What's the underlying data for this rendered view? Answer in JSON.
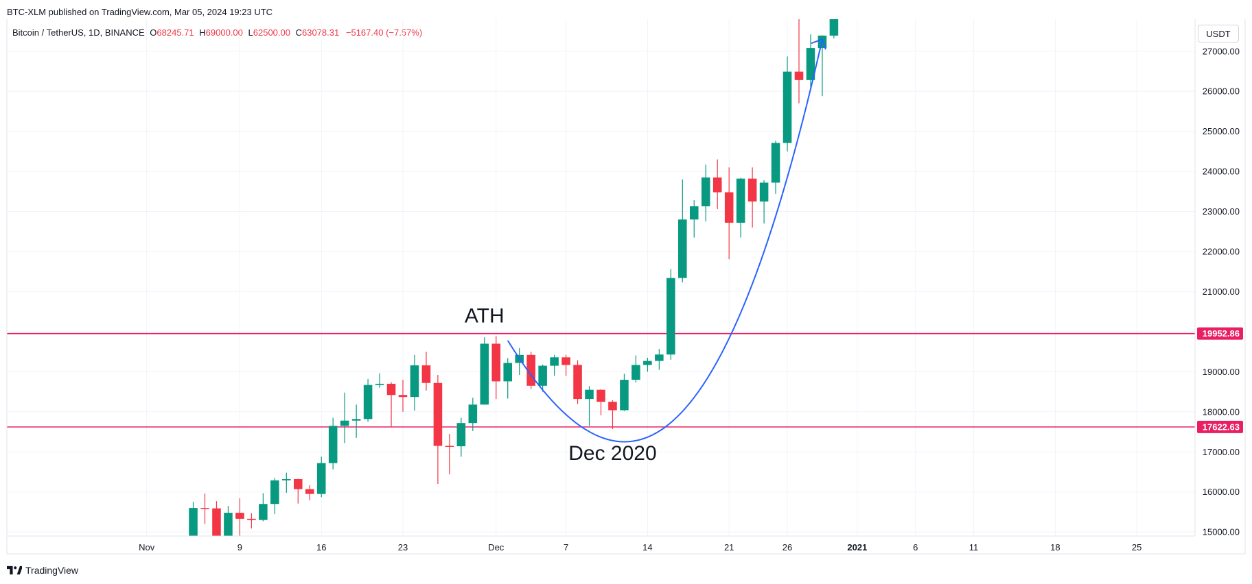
{
  "header": {
    "publish_text": "BTC-XLM published on TradingView.com, Mar 05, 2024 19:23 UTC"
  },
  "legend": {
    "symbol": "Bitcoin / TetherUS, 1D, BINANCE",
    "o_label": "O",
    "o_value": "68245.71",
    "h_label": "H",
    "h_value": "69000.00",
    "l_label": "L",
    "l_value": "62500.00",
    "c_label": "C",
    "c_value": "63078.31",
    "change": "−5167.40 (−7.57%)"
  },
  "currency": "USDT",
  "footer": {
    "brand": "TradingView"
  },
  "colors": {
    "up": "#089981",
    "down": "#f23645",
    "level": "#e91e63",
    "curve": "#2962ff",
    "grid": "#f0f3fa"
  },
  "chart_data": {
    "type": "candlestick",
    "y_range": [
      14900,
      27800
    ],
    "y_ticks": [
      "15000.00",
      "16000.00",
      "17000.00",
      "18000.00",
      "19000.00",
      "20000.00",
      "21000.00",
      "22000.00",
      "23000.00",
      "24000.00",
      "25000.00",
      "26000.00",
      "27000.00"
    ],
    "x_range": [
      "2020-10-20",
      "2021-01-30"
    ],
    "x_ticks": [
      {
        "date": "2020-11-01",
        "label": "Nov"
      },
      {
        "date": "2020-11-09",
        "label": "9"
      },
      {
        "date": "2020-11-16",
        "label": "16"
      },
      {
        "date": "2020-11-23",
        "label": "23"
      },
      {
        "date": "2020-12-01",
        "label": "Dec"
      },
      {
        "date": "2020-12-07",
        "label": "7"
      },
      {
        "date": "2020-12-14",
        "label": "14"
      },
      {
        "date": "2020-12-21",
        "label": "21"
      },
      {
        "date": "2020-12-26",
        "label": "26"
      },
      {
        "date": "2021-01-01",
        "label": "2021"
      },
      {
        "date": "2021-01-06",
        "label": "6"
      },
      {
        "date": "2021-01-11",
        "label": "11"
      },
      {
        "date": "2021-01-18",
        "label": "18"
      },
      {
        "date": "2021-01-25",
        "label": "25"
      }
    ],
    "horizontal_levels": [
      {
        "value": 19952.86,
        "label": "19952.86"
      },
      {
        "value": 17622.63,
        "label": "17622.63"
      }
    ],
    "annotations": [
      {
        "text": "ATH",
        "date": "2020-11-30",
        "price": 20230
      },
      {
        "text": "Dec 2020",
        "date": "2020-12-11",
        "price": 16800
      }
    ],
    "curve": [
      {
        "date": "2020-12-02",
        "price": 19780
      },
      {
        "date": "2020-12-11",
        "price": 17100
      },
      {
        "date": "2020-12-20",
        "price": 18800
      },
      {
        "date": "2020-12-29",
        "price": 27300
      }
    ],
    "candles": [
      {
        "date": "2020-11-05",
        "o": 14150,
        "h": 15750,
        "l": 14100,
        "c": 15600
      },
      {
        "date": "2020-11-06",
        "o": 15600,
        "h": 15960,
        "l": 15200,
        "c": 15590
      },
      {
        "date": "2020-11-07",
        "o": 15590,
        "h": 15770,
        "l": 14350,
        "c": 14840
      },
      {
        "date": "2020-11-08",
        "o": 14840,
        "h": 15650,
        "l": 14700,
        "c": 15480
      },
      {
        "date": "2020-11-09",
        "o": 15480,
        "h": 15840,
        "l": 14800,
        "c": 15330
      },
      {
        "date": "2020-11-10",
        "o": 15330,
        "h": 15470,
        "l": 15090,
        "c": 15300
      },
      {
        "date": "2020-11-11",
        "o": 15300,
        "h": 15970,
        "l": 15270,
        "c": 15700
      },
      {
        "date": "2020-11-12",
        "o": 15700,
        "h": 16350,
        "l": 15450,
        "c": 16290
      },
      {
        "date": "2020-11-13",
        "o": 16290,
        "h": 16480,
        "l": 15980,
        "c": 16320
      },
      {
        "date": "2020-11-14",
        "o": 16320,
        "h": 16330,
        "l": 15710,
        "c": 16070
      },
      {
        "date": "2020-11-15",
        "o": 16070,
        "h": 16170,
        "l": 15790,
        "c": 15950
      },
      {
        "date": "2020-11-16",
        "o": 15950,
        "h": 16880,
        "l": 15870,
        "c": 16720
      },
      {
        "date": "2020-11-17",
        "o": 16720,
        "h": 17850,
        "l": 16560,
        "c": 17650
      },
      {
        "date": "2020-11-18",
        "o": 17650,
        "h": 18480,
        "l": 17220,
        "c": 17780
      },
      {
        "date": "2020-11-19",
        "o": 17780,
        "h": 18180,
        "l": 17350,
        "c": 17820
      },
      {
        "date": "2020-11-20",
        "o": 17820,
        "h": 18820,
        "l": 17750,
        "c": 18670
      },
      {
        "date": "2020-11-21",
        "o": 18670,
        "h": 18960,
        "l": 18600,
        "c": 18700
      },
      {
        "date": "2020-11-22",
        "o": 18700,
        "h": 18740,
        "l": 17610,
        "c": 18420
      },
      {
        "date": "2020-11-23",
        "o": 18420,
        "h": 18800,
        "l": 18000,
        "c": 18370
      },
      {
        "date": "2020-11-24",
        "o": 18370,
        "h": 19420,
        "l": 18030,
        "c": 19160
      },
      {
        "date": "2020-11-25",
        "o": 19160,
        "h": 19500,
        "l": 18530,
        "c": 18720
      },
      {
        "date": "2020-11-26",
        "o": 18720,
        "h": 18920,
        "l": 16200,
        "c": 17150
      },
      {
        "date": "2020-11-27",
        "o": 17150,
        "h": 17450,
        "l": 16440,
        "c": 17140
      },
      {
        "date": "2020-11-28",
        "o": 17140,
        "h": 17850,
        "l": 16880,
        "c": 17720
      },
      {
        "date": "2020-11-29",
        "o": 17720,
        "h": 18350,
        "l": 17520,
        "c": 18180
      },
      {
        "date": "2020-11-30",
        "o": 18180,
        "h": 19860,
        "l": 18180,
        "c": 19700
      },
      {
        "date": "2020-12-01",
        "o": 19700,
        "h": 19890,
        "l": 18320,
        "c": 18760
      },
      {
        "date": "2020-12-02",
        "o": 18760,
        "h": 19340,
        "l": 18330,
        "c": 19220
      },
      {
        "date": "2020-12-03",
        "o": 19220,
        "h": 19590,
        "l": 18920,
        "c": 19420
      },
      {
        "date": "2020-12-04",
        "o": 19420,
        "h": 19500,
        "l": 18570,
        "c": 18650
      },
      {
        "date": "2020-12-05",
        "o": 18650,
        "h": 19180,
        "l": 18500,
        "c": 19150
      },
      {
        "date": "2020-12-06",
        "o": 19150,
        "h": 19420,
        "l": 18900,
        "c": 19360
      },
      {
        "date": "2020-12-07",
        "o": 19360,
        "h": 19420,
        "l": 18900,
        "c": 19170
      },
      {
        "date": "2020-12-08",
        "o": 19170,
        "h": 19290,
        "l": 18200,
        "c": 18320
      },
      {
        "date": "2020-12-09",
        "o": 18320,
        "h": 18640,
        "l": 17650,
        "c": 18550
      },
      {
        "date": "2020-12-10",
        "o": 18550,
        "h": 18560,
        "l": 17910,
        "c": 18250
      },
      {
        "date": "2020-12-11",
        "o": 18250,
        "h": 18290,
        "l": 17570,
        "c": 18040
      },
      {
        "date": "2020-12-12",
        "o": 18040,
        "h": 18950,
        "l": 18020,
        "c": 18800
      },
      {
        "date": "2020-12-13",
        "o": 18800,
        "h": 19410,
        "l": 18730,
        "c": 19170
      },
      {
        "date": "2020-12-14",
        "o": 19170,
        "h": 19350,
        "l": 19000,
        "c": 19270
      },
      {
        "date": "2020-12-15",
        "o": 19270,
        "h": 19570,
        "l": 19050,
        "c": 19430
      },
      {
        "date": "2020-12-16",
        "o": 19430,
        "h": 21560,
        "l": 19300,
        "c": 21340
      },
      {
        "date": "2020-12-17",
        "o": 21340,
        "h": 23800,
        "l": 21230,
        "c": 22800
      },
      {
        "date": "2020-12-18",
        "o": 22800,
        "h": 23280,
        "l": 22350,
        "c": 23130
      },
      {
        "date": "2020-12-19",
        "o": 23130,
        "h": 24170,
        "l": 22750,
        "c": 23850
      },
      {
        "date": "2020-12-20",
        "o": 23850,
        "h": 24300,
        "l": 23060,
        "c": 23480
      },
      {
        "date": "2020-12-21",
        "o": 23480,
        "h": 24100,
        "l": 21810,
        "c": 22720
      },
      {
        "date": "2020-12-22",
        "o": 22720,
        "h": 23840,
        "l": 22350,
        "c": 23820
      },
      {
        "date": "2020-12-23",
        "o": 23820,
        "h": 24100,
        "l": 22600,
        "c": 23250
      },
      {
        "date": "2020-12-24",
        "o": 23250,
        "h": 23780,
        "l": 22700,
        "c": 23720
      },
      {
        "date": "2020-12-25",
        "o": 23720,
        "h": 24770,
        "l": 23440,
        "c": 24710
      },
      {
        "date": "2020-12-26",
        "o": 24710,
        "h": 26870,
        "l": 24500,
        "c": 26490
      },
      {
        "date": "2020-12-27",
        "o": 26490,
        "h": 28420,
        "l": 25700,
        "c": 26280
      },
      {
        "date": "2020-12-28",
        "o": 26280,
        "h": 27420,
        "l": 26100,
        "c": 27080
      },
      {
        "date": "2020-12-29",
        "o": 27080,
        "h": 27400,
        "l": 25880,
        "c": 27390
      },
      {
        "date": "2020-12-30",
        "o": 27390,
        "h": 28990,
        "l": 27320,
        "c": 28900
      }
    ]
  }
}
